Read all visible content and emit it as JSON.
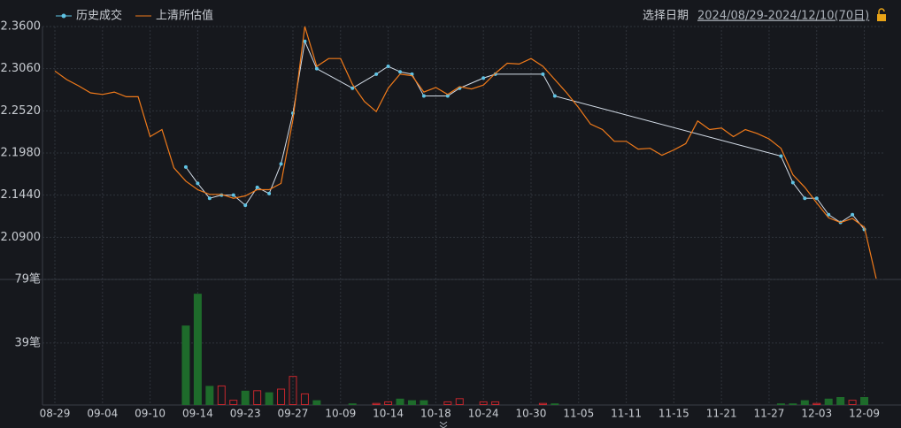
{
  "toolbar": {
    "date_label": "选择日期",
    "date_range": "2024/08/29-2024/12/10(70日)"
  },
  "chart_data": {
    "type": "line",
    "grid": true,
    "categories": [
      "08-29",
      null,
      null,
      null,
      "09-04",
      null,
      null,
      null,
      "09-10",
      null,
      null,
      null,
      "09-14",
      null,
      null,
      null,
      "09-23",
      null,
      null,
      null,
      "09-27",
      null,
      null,
      null,
      "10-09",
      null,
      null,
      null,
      "10-14",
      null,
      null,
      null,
      "10-18",
      null,
      null,
      null,
      "10-24",
      null,
      null,
      null,
      "10-30",
      null,
      null,
      null,
      "11-05",
      null,
      null,
      null,
      "11-11",
      null,
      null,
      null,
      "11-15",
      null,
      null,
      null,
      "11-21",
      null,
      null,
      null,
      "11-27",
      null,
      null,
      null,
      "12-03",
      null,
      null,
      null,
      "12-09",
      null
    ],
    "ylim": [
      2.036,
      2.36
    ],
    "yticks": [
      {
        "value": 2.36,
        "label": "2.3600"
      },
      {
        "value": 2.306,
        "label": "2.3060"
      },
      {
        "value": 2.252,
        "label": "2.2520"
      },
      {
        "value": 2.198,
        "label": "2.1980"
      },
      {
        "value": 2.144,
        "label": "2.1440"
      },
      {
        "value": 2.09,
        "label": "2.0900"
      }
    ],
    "series": [
      {
        "name": "历史成交",
        "color": "#5fc3e4",
        "line_color": "#d4dde8",
        "markers": true,
        "values": [
          null,
          null,
          null,
          null,
          null,
          null,
          null,
          null,
          null,
          null,
          null,
          2.18,
          2.159,
          2.14,
          2.144,
          2.144,
          2.131,
          2.154,
          2.146,
          2.184,
          2.249,
          2.341,
          2.306,
          null,
          null,
          2.281,
          null,
          2.299,
          2.309,
          2.302,
          2.299,
          2.271,
          null,
          2.271,
          2.281,
          null,
          2.294,
          2.299,
          null,
          null,
          null,
          2.299,
          2.271,
          null,
          null,
          null,
          null,
          null,
          null,
          null,
          null,
          null,
          null,
          null,
          null,
          null,
          null,
          null,
          null,
          null,
          null,
          2.194,
          2.16,
          2.14,
          2.14,
          2.119,
          2.109,
          2.119,
          2.1,
          null
        ]
      },
      {
        "name": "上清所估值",
        "color": "#f07a1a",
        "markers": false,
        "values": [
          2.303,
          2.292,
          2.284,
          2.275,
          2.273,
          2.276,
          2.27,
          2.27,
          2.219,
          2.228,
          2.179,
          2.162,
          2.151,
          2.145,
          2.145,
          2.14,
          2.143,
          2.151,
          2.151,
          2.159,
          2.241,
          2.36,
          2.309,
          2.319,
          2.319,
          2.286,
          2.264,
          2.251,
          2.281,
          2.299,
          2.297,
          2.276,
          2.282,
          2.273,
          2.283,
          2.28,
          2.285,
          2.3,
          2.313,
          2.312,
          2.319,
          2.309,
          2.292,
          2.275,
          2.256,
          2.235,
          2.228,
          2.213,
          2.213,
          2.203,
          2.204,
          2.195,
          2.202,
          2.21,
          2.239,
          2.228,
          2.23,
          2.219,
          2.228,
          2.223,
          2.216,
          2.204,
          2.17,
          2.154,
          2.134,
          2.115,
          2.109,
          2.114,
          2.103,
          2.037
        ]
      }
    ],
    "volume": {
      "type": "bar",
      "ylim": [
        0,
        79
      ],
      "yticks": [
        {
          "value": 79,
          "label": "79笔"
        },
        {
          "value": 39,
          "label": "39笔"
        }
      ],
      "hollow_color": "#c4272d",
      "values": [
        null,
        null,
        null,
        null,
        null,
        null,
        null,
        null,
        null,
        null,
        null,
        50,
        70,
        12,
        12,
        3,
        9,
        9,
        8,
        10,
        18,
        7,
        3,
        null,
        null,
        1,
        null,
        1,
        2,
        4,
        3,
        3,
        null,
        2,
        4,
        null,
        2,
        2,
        null,
        null,
        null,
        1,
        1,
        null,
        null,
        null,
        null,
        null,
        null,
        null,
        null,
        null,
        null,
        null,
        null,
        null,
        null,
        null,
        null,
        null,
        null,
        1,
        1,
        3,
        1,
        4,
        5,
        3,
        5,
        null
      ],
      "colors": [
        null,
        null,
        null,
        null,
        null,
        null,
        null,
        null,
        null,
        null,
        null,
        "#1e6b2b",
        "#1e6b2b",
        "#1e6b2b",
        "#c4272d",
        "#c4272d",
        "#1e6b2b",
        "#c4272d",
        "#1e6b2b",
        "#c4272d",
        "#c4272d",
        "#c4272d",
        "#1e6b2b",
        null,
        null,
        "#1e6b2b",
        null,
        "#c4272d",
        "#c4272d",
        "#1e6b2b",
        "#1e6b2b",
        "#1e6b2b",
        null,
        "#c4272d",
        "#c4272d",
        null,
        "#c4272d",
        "#c4272d",
        null,
        null,
        null,
        "#c4272d",
        "#1e6b2b",
        null,
        null,
        null,
        null,
        null,
        null,
        null,
        null,
        null,
        null,
        null,
        null,
        null,
        null,
        null,
        null,
        null,
        null,
        "#1e6b2b",
        "#1e6b2b",
        "#1e6b2b",
        "#c4272d",
        "#1e6b2b",
        "#1e6b2b",
        "#c4272d",
        "#1e6b2b",
        null
      ]
    }
  }
}
